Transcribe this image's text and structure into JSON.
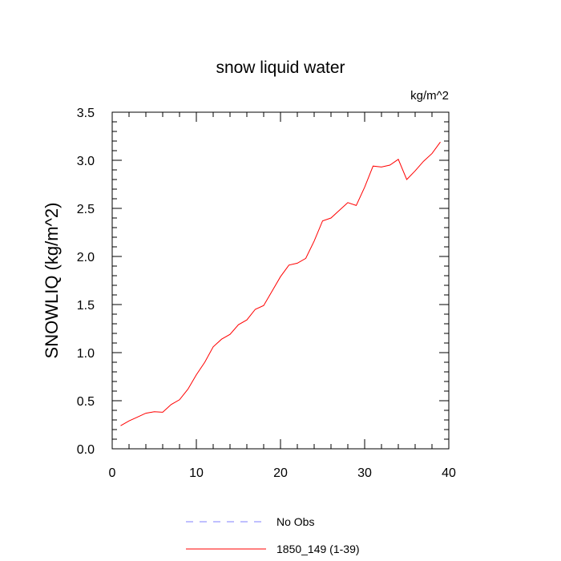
{
  "chart_data": {
    "type": "line",
    "title": "snow liquid water",
    "units_label": "kg/m^2",
    "ylabel": "SNOWLIQ  (kg/m^2)",
    "xlabel": "",
    "xlim": [
      0,
      40
    ],
    "ylim": [
      0.0,
      3.5
    ],
    "x_ticks": [
      0,
      10,
      20,
      30,
      40
    ],
    "x_tick_labels": [
      "0",
      "10",
      "20",
      "30",
      "40"
    ],
    "y_ticks": [
      0.0,
      0.5,
      1.0,
      1.5,
      2.0,
      2.5,
      3.0,
      3.5
    ],
    "y_tick_labels": [
      "0.0",
      "0.5",
      "1.0",
      "1.5",
      "2.0",
      "2.5",
      "3.0",
      "3.5"
    ],
    "grid": false,
    "legend_position": "bottom-center",
    "series": [
      {
        "name": "1850_149 (1-39)",
        "color": "#ff0000",
        "style": "solid",
        "x": [
          1,
          2,
          3,
          4,
          5,
          6,
          7,
          8,
          9,
          10,
          11,
          12,
          13,
          14,
          15,
          16,
          17,
          18,
          19,
          20,
          21,
          22,
          23,
          24,
          25,
          26,
          27,
          28,
          29,
          30,
          31,
          32,
          33,
          34,
          35,
          36,
          37,
          38,
          39
        ],
        "y": [
          0.24,
          0.29,
          0.33,
          0.37,
          0.385,
          0.38,
          0.46,
          0.51,
          0.62,
          0.77,
          0.9,
          1.06,
          1.14,
          1.19,
          1.29,
          1.34,
          1.45,
          1.49,
          1.64,
          1.79,
          1.91,
          1.93,
          1.98,
          2.16,
          2.37,
          2.4,
          2.48,
          2.56,
          2.53,
          2.72,
          2.94,
          2.93,
          2.95,
          3.01,
          2.8,
          2.89,
          2.99,
          3.07,
          3.19
        ]
      }
    ],
    "legend": [
      {
        "label": "No Obs",
        "color": "#8080ff",
        "style": "dashed"
      },
      {
        "label": "1850_149 (1-39)",
        "color": "#ff0000",
        "style": "solid"
      }
    ]
  }
}
